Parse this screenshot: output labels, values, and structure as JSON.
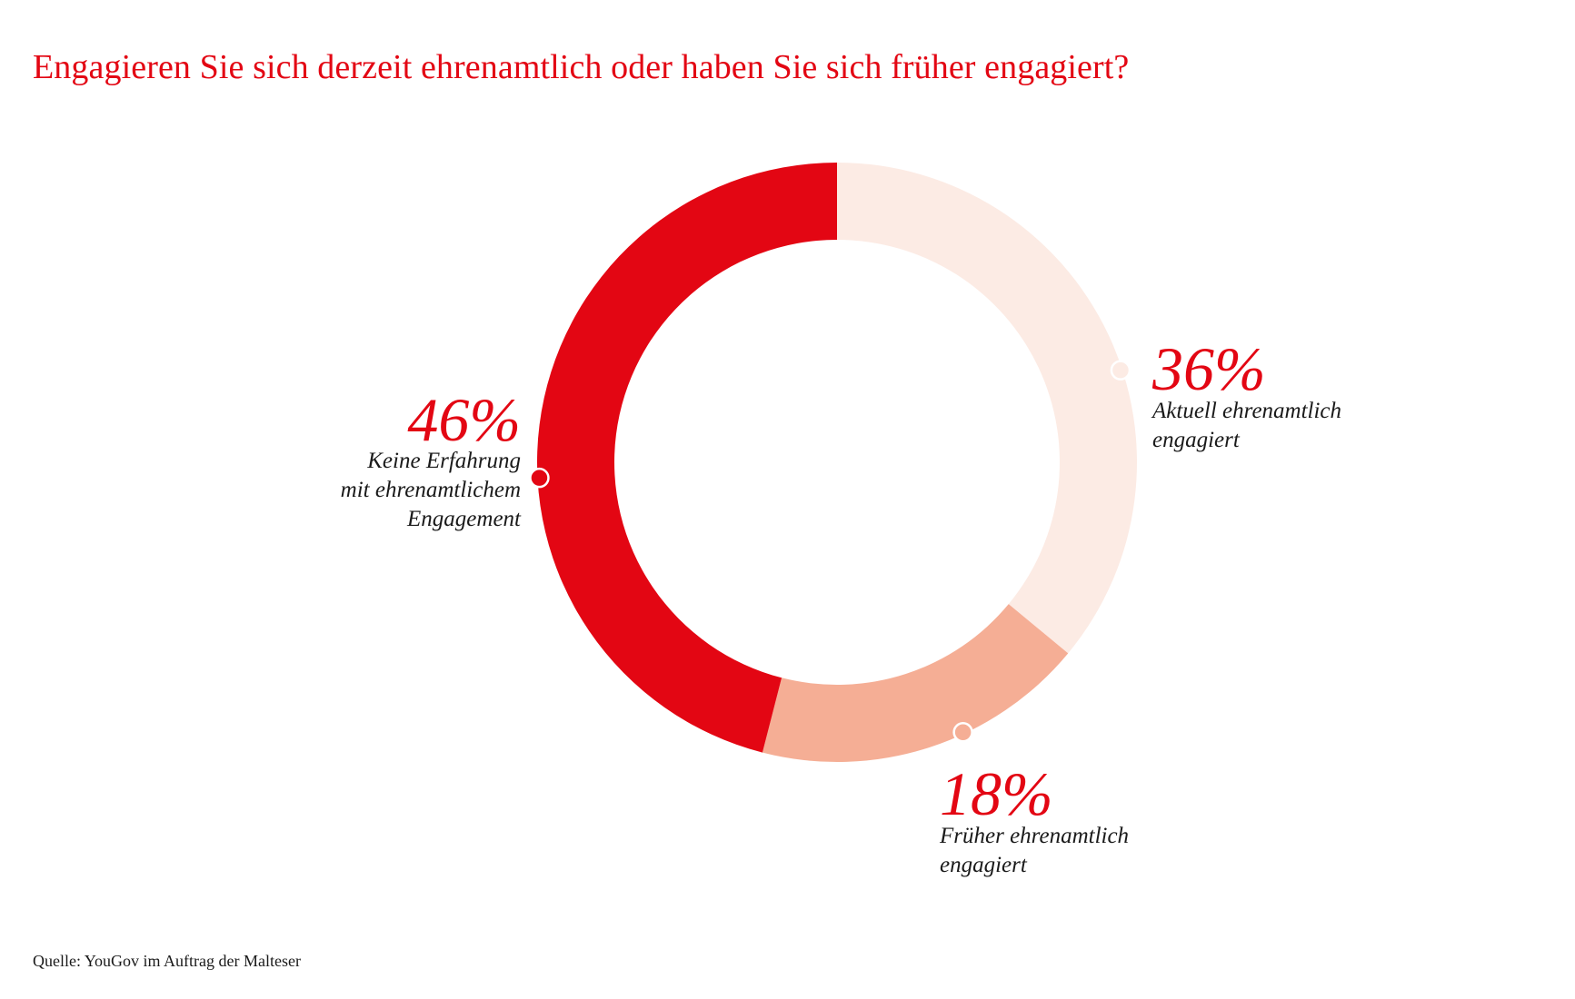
{
  "title": "Engagieren Sie sich derzeit ehrenamtlich oder haben Sie sich früher engagiert?",
  "source": "Quelle: YouGov im Auftrag der Malteser",
  "colors": {
    "accent": "#e30613",
    "current": "#fcebe4",
    "former": "#f5ae95",
    "none": "#e30613"
  },
  "chart_data": {
    "type": "pie",
    "variant": "donut",
    "title": "Engagieren Sie sich derzeit ehrenamtlich oder haben Sie sich früher engagiert?",
    "slices": [
      {
        "value": 36,
        "value_label": "36%",
        "label_lines": [
          "Aktuell ehrenamtlich",
          "engagiert"
        ],
        "color": "#fcebe4"
      },
      {
        "value": 18,
        "value_label": "18%",
        "label_lines": [
          "Früher ehrenamtlich",
          "engagiert"
        ],
        "color": "#f5ae95"
      },
      {
        "value": 46,
        "value_label": "46%",
        "label_lines": [
          "Keine Erfahrung",
          "mit ehrenamtlichem",
          "Engagement"
        ],
        "color": "#e30613"
      }
    ]
  }
}
